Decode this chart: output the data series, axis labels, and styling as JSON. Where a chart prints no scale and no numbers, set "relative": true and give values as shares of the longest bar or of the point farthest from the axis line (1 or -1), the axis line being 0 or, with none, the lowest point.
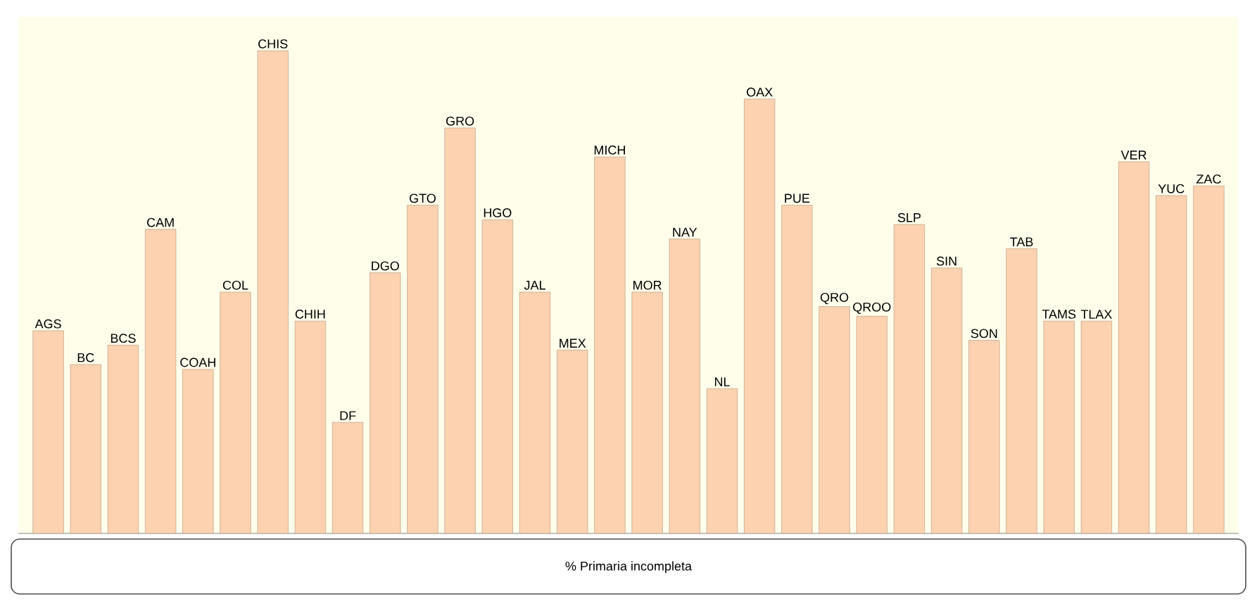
{
  "chart_data": {
    "type": "bar",
    "relative": true,
    "xlabel": "% Primaria incompleta",
    "color": "#fcd2b0",
    "categories": [
      "AGS",
      "BC",
      "BCS",
      "CAM",
      "COAH",
      "COL",
      "CHIS",
      "CHIH",
      "DF",
      "DGO",
      "GTO",
      "GRO",
      "HGO",
      "JAL",
      "MEX",
      "MICH",
      "MOR",
      "NAY",
      "NL",
      "OAX",
      "PUE",
      "QRO",
      "QROO",
      "SLP",
      "SIN",
      "SON",
      "TAB",
      "TAMS",
      "TLAX",
      "VER",
      "YUC",
      "ZAC"
    ],
    "values": [
      0.42,
      0.35,
      0.39,
      0.63,
      0.34,
      0.5,
      1,
      0.44,
      0.23,
      0.54,
      0.68,
      0.84,
      0.65,
      0.5,
      0.38,
      0.78,
      0.5,
      0.61,
      0.3,
      0.9,
      0.68,
      0.47,
      0.45,
      0.64,
      0.55,
      0.4,
      0.59,
      0.44,
      0.44,
      0.77,
      0.7,
      0.72
    ]
  }
}
